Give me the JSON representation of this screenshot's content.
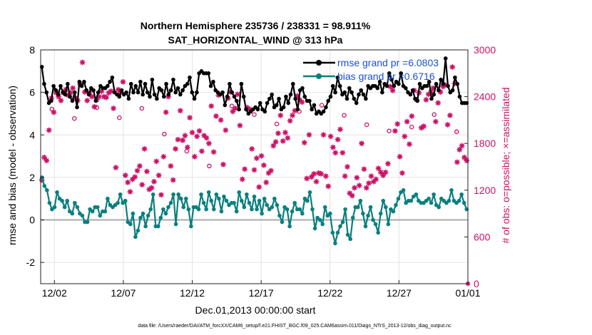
{
  "chart_data": {
    "type": "line",
    "title": [
      "Northern Hemisphere 235736 / 238331 = 98.911%",
      "SAT_HORIZONTAL_WIND @ 313 hPa"
    ],
    "xlabel": "Dec.01,2013 00:00:00 start",
    "ylabel_left": "rmse and bias (model - observation)",
    "ylabel_right": "# of obs: o=possible; ×=assimilated",
    "xlim": [
      0,
      31
    ],
    "ylim_left": [
      -3,
      8
    ],
    "ylim_right": [
      0,
      3000
    ],
    "x_tick_values": [
      1,
      6,
      11,
      16,
      21,
      26,
      31
    ],
    "x_tick_labels": [
      "12/02",
      "12/07",
      "12/12",
      "12/17",
      "12/22",
      "12/27",
      "01/01"
    ],
    "y_ticks_left": [
      "-2",
      "0",
      "2",
      "4",
      "6",
      "8"
    ],
    "y_ticks_right": [
      "0",
      "600",
      "1200",
      "1800",
      "2400",
      "3000"
    ],
    "legend": {
      "placement": "top-right",
      "entries": [
        "rmse grand pr =6.0803",
        "bias grand pr =0.6716"
      ]
    },
    "series": [
      {
        "name": "rmse",
        "color": "#000000",
        "values": [
          7.2,
          6.4,
          6.0,
          5.5,
          5.6,
          6.3,
          6.1,
          5.9,
          6.3,
          6.0,
          5.9,
          6.4,
          5.8,
          5.6,
          6.0,
          5.3,
          6.5,
          6.3,
          6.5,
          6.1,
          5.9,
          6.2,
          6.1,
          5.6,
          6.0,
          6.3,
          6.2,
          6.2,
          6.3,
          6.5,
          6.7,
          6.0,
          5.9,
          5.8,
          6.1,
          5.9,
          6.0,
          5.7,
          6.4,
          6.0,
          6.3,
          6.0,
          6.5,
          5.9,
          6.4,
          6.0,
          5.8,
          6.6,
          5.9,
          5.7,
          6.2,
          6.1,
          5.8,
          6.4,
          5.9,
          6.1,
          6.6,
          6.0,
          6.2,
          5.9,
          6.1,
          6.3,
          6.4,
          6.7,
          6.0,
          5.7,
          6.0,
          6.9,
          7.0,
          6.9,
          6.9,
          6.9,
          6.3,
          6.5,
          6.1,
          6.0,
          5.9,
          6.0,
          5.4,
          5.8,
          6.4,
          6.0,
          5.8,
          5.6,
          5.2,
          6.4,
          5.8,
          5.2,
          5.0,
          5.1,
          5.2,
          5.3,
          5.2,
          5.5,
          5.2,
          5.1,
          5.5,
          5.7,
          5.9,
          5.3,
          5.4,
          5.7,
          5.2,
          5.3,
          5.8,
          5.5,
          5.9,
          6.4,
          5.7,
          5.2,
          6.1,
          6.2,
          5.8,
          5.6,
          5.6,
          5.2,
          5.4,
          5.0,
          5.1,
          5.0,
          5.1,
          5.3,
          5.6,
          5.8,
          6.3,
          6.0,
          6.7,
          6.3,
          5.9,
          6.0,
          5.7,
          6.2,
          6.0,
          5.7,
          5.5,
          5.9,
          6.1,
          5.9,
          5.7,
          6.3,
          6.2,
          6.3,
          6.3,
          6.2,
          6.5,
          6.0,
          6.4,
          6.3,
          6.9,
          6.6,
          6.3,
          6.5,
          6.4,
          6.9,
          6.3,
          6.2,
          6.0,
          5.9,
          6.1,
          5.7,
          5.6,
          6.4,
          6.2,
          6.3,
          6.3,
          6.5,
          5.7,
          5.9,
          6.4,
          6.1,
          6.6,
          6.4,
          7.6,
          6.3,
          6.0,
          6.1,
          6.7,
          6.4,
          5.8,
          5.5,
          5.5,
          5.5
        ],
        "marker": "dot"
      },
      {
        "name": "bias",
        "color": "#0a7f7f",
        "values": [
          2.0,
          1.6,
          1.4,
          0.8,
          0.5,
          0.6,
          1.3,
          1.0,
          0.9,
          0.6,
          0.9,
          0.4,
          0.3,
          0.8,
          0.6,
          0.3,
          0.2,
          -0.1,
          -0.1,
          0.5,
          0.4,
          0.6,
          0.6,
          0.2,
          0.4,
          0.4,
          1.0,
          0.7,
          0.6,
          0.7,
          0.8,
          1.2,
          0.8,
          0.9,
          -0.1,
          -0.2,
          0.3,
          -0.8,
          -0.5,
          0.1,
          0.3,
          -0.3,
          0.2,
          0.5,
          1.2,
          -0.3,
          -0.3,
          0.1,
          0.5,
          0.3,
          0.6,
          0.8,
          1.2,
          -0.2,
          1.2,
          1.0,
          0.6,
          1.0,
          0.5,
          -0.3,
          0.6,
          0.6,
          0.5,
          1.2,
          0.8,
          0.5,
          1.3,
          0.9,
          0.5,
          1.2,
          1.0,
          0.4,
          1.1,
          0.9,
          0.7,
          0.8,
          0.8,
          0.4,
          1.3,
          0.9,
          0.6,
          1.2,
          0.8,
          0.5,
          1.1,
          0.5,
          0.9,
          0.3,
          1.0,
          0.7,
          0.5,
          0.6,
          1.0,
          0.7,
          0.2,
          -0.1,
          0.6,
          0.5,
          -0.3,
          0.4,
          0.8,
          0.5,
          0.5,
          0.3,
          1.0,
          0.9,
          1.3,
          0.5,
          -0.4,
          0.1,
          0.0,
          -0.2,
          0.6,
          0.2,
          0.3,
          -0.6,
          -1.1,
          -0.6,
          -0.3,
          -0.1,
          0.5,
          -0.7,
          -0.9,
          0.1,
          0.6,
          0.6,
          0.9,
          0.3,
          -0.3,
          0.2,
          0.6,
          0.0,
          -0.2,
          -0.6,
          0.3,
          0.9,
          0.6,
          -0.2,
          0.5,
          0.4,
          0.7,
          1.0,
          1.3,
          1.4,
          0.8,
          0.9,
          0.9,
          1.1,
          1.2,
          0.9,
          0.8,
          0.8,
          0.9,
          1.0,
          0.8,
          1.2,
          0.7,
          0.6,
          1.0,
          0.9,
          0.8,
          0.9,
          1.4,
          0.9,
          0.8,
          0.9,
          1.2,
          0.8,
          0.5
        ],
        "marker": "dot"
      },
      {
        "name": "obs assimilated",
        "color": "#cc1166",
        "axis": "right",
        "values": [
          1330,
          1620,
          1580,
          1970,
          2380,
          2200,
          2450,
          2400,
          2350,
          2450,
          2490,
          2420,
          2450,
          2510,
          2380,
          2350,
          2560,
          2840,
          2460,
          2350,
          2450,
          2400,
          2270,
          2360,
          2400,
          2470,
          2400,
          2390,
          2450,
          2470,
          2250,
          1490,
          2490,
          2450,
          2590,
          1390,
          1300,
          1180,
          1340,
          1370,
          1450,
          1510,
          1270,
          1730,
          1440,
          1210,
          1230,
          1310,
          1570,
          1390,
          1140,
          1630,
          2200,
          2400,
          1510,
          1330,
          1730,
          1850,
          2220,
          1840,
          1900,
          1750,
          2130,
          1940,
          1630,
          1890,
          1960,
          1700,
          1900,
          1870,
          1800,
          2280,
          1690,
          2150,
          2420,
          2100,
          1530,
          1970,
          2380,
          2460,
          2210,
          2250,
          2430,
          2030,
          1340,
          1470,
          2260,
          2240,
          1730,
          1460,
          1610,
          1240,
          1640,
          1520,
          1300,
          1420,
          1450,
          1770,
          1820,
          1930,
          2160,
          1830,
          1940,
          1870,
          2090,
          2160,
          2220,
          2410,
          2360,
          2330,
          1810,
          1350,
          1910,
          1370,
          1410,
          1310,
          1420,
          1410,
          1910,
          1380,
          1250,
          1890,
          1750,
          1680,
          1850,
          1980,
          1680,
          1380,
          1500,
          1160,
          1130,
          1230,
          1360,
          1260,
          1800,
          1470,
          1230,
          1290,
          1380,
          1310,
          1340,
          1480,
          1430,
          1390,
          1430,
          1540,
          2530,
          2480,
          1960,
          2050,
          1630,
          1420,
          1890,
          2080,
          1790,
          2150,
          2480,
          2360,
          2450,
          2000,
          2020,
          2360,
          2430,
          2460,
          2510,
          2080,
          2320,
          2460,
          2530,
          2550,
          2040,
          2160,
          2780,
          2570,
          1560,
          1720,
          1770,
          1620,
          1580
        ],
        "marker": "asterisk"
      },
      {
        "name": "obs possible",
        "color": "#cc1166",
        "axis": "right",
        "values": [
          2240,
          2120,
          2260,
          2130,
          2250,
          1920,
          1700,
          1510,
          2280,
          2170,
          2050,
          2210,
          2290,
          2160,
          2040,
          1960,
          2010,
          2170,
          1950
        ],
        "marker": "circle"
      }
    ]
  },
  "footer": {
    "data_file": "data file: /Users/raeder/DAI/ATM_forcXX/CAM6_setup/f.e21.FHIST_BGC.f09_025.CAM6assim.011/Diags_NTrS_2013-12/obs_diag_output.nc"
  }
}
